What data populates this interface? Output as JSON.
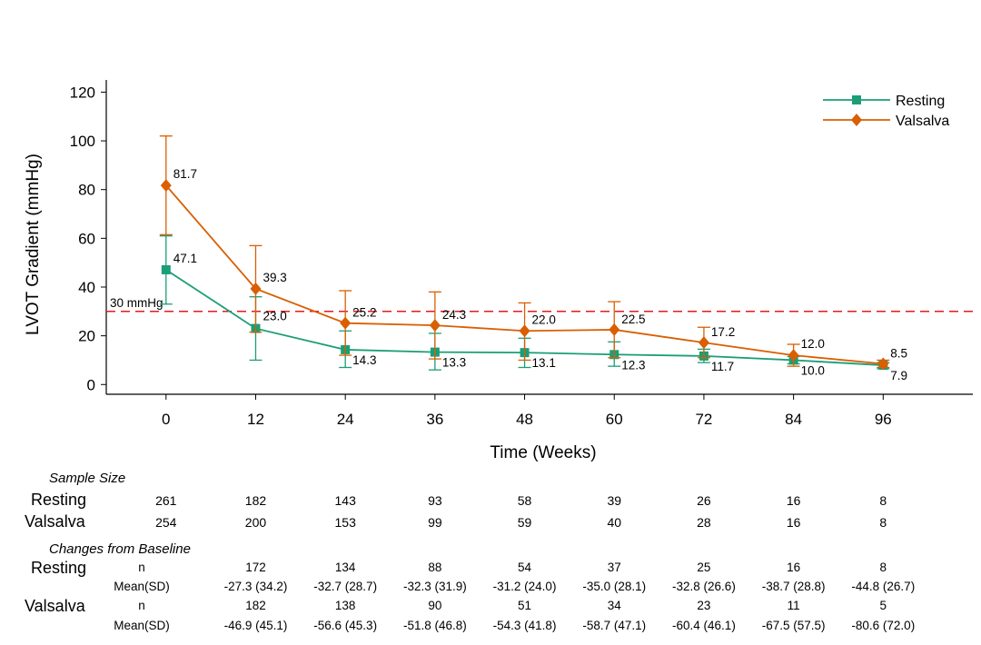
{
  "colors": {
    "resting": "#1a9e77",
    "valsalva": "#d95f02",
    "reference": "#e31a1c"
  },
  "chart_data": {
    "type": "line",
    "xlabel": "Time (Weeks)",
    "ylabel": "LVOT Gradient (mmHg)",
    "x": [
      0,
      12,
      24,
      36,
      48,
      60,
      72,
      84,
      96
    ],
    "xticks": [
      "0",
      "12",
      "24",
      "36",
      "48",
      "60",
      "72",
      "84",
      "96"
    ],
    "yticks": [
      "0",
      "20",
      "40",
      "60",
      "80",
      "100",
      "120"
    ],
    "xlim": [
      -8,
      108
    ],
    "ylim": [
      -4,
      125
    ],
    "legend_position": "top-right",
    "reference_line": {
      "y": 30,
      "label": "30 mmHg",
      "style": "dashed"
    },
    "series": [
      {
        "name": "Resting",
        "marker": "square",
        "values": [
          47.1,
          23.0,
          14.3,
          13.3,
          13.1,
          12.3,
          11.7,
          10.0,
          7.9
        ],
        "labels": [
          "47.1",
          "23.0",
          "14.3",
          "13.3",
          "13.1",
          "12.3",
          "11.7",
          "10.0",
          "7.9"
        ],
        "err_low": [
          33,
          10,
          7,
          6,
          7,
          7.5,
          9,
          8.5,
          6.5
        ],
        "err_high": [
          61,
          36,
          22,
          21,
          19,
          17.5,
          14.5,
          11.5,
          9
        ]
      },
      {
        "name": "Valsalva",
        "marker": "diamond",
        "values": [
          81.7,
          39.3,
          25.2,
          24.3,
          22.0,
          22.5,
          17.2,
          12.0,
          8.5
        ],
        "labels": [
          "81.7",
          "39.3",
          "25.2",
          "24.3",
          "22.0",
          "22.5",
          "17.2",
          "12.0",
          "8.5"
        ],
        "err_low": [
          61.5,
          21.5,
          12,
          10.5,
          10,
          11,
          11,
          7.5,
          7
        ],
        "err_high": [
          102,
          57,
          38.5,
          38,
          33.5,
          34,
          23.5,
          16.5,
          10
        ]
      }
    ]
  },
  "table": {
    "sample_size": {
      "title": "Sample Size",
      "rows": [
        {
          "label": "Resting",
          "values": [
            "261",
            "182",
            "143",
            "93",
            "58",
            "39",
            "26",
            "16",
            "8"
          ]
        },
        {
          "label": "Valsalva",
          "values": [
            "254",
            "200",
            "153",
            "99",
            "59",
            "40",
            "28",
            "16",
            "8"
          ]
        }
      ]
    },
    "changes": {
      "title": "Changes from Baseline",
      "n_label": "n",
      "mean_label": "Mean(SD)",
      "groups": [
        {
          "label": "Resting",
          "n": [
            "172",
            "134",
            "88",
            "54",
            "37",
            "25",
            "16",
            "8"
          ],
          "mean": [
            "-27.3 (34.2)",
            "-32.7 (28.7)",
            "-32.3 (31.9)",
            "-31.2 (24.0)",
            "-35.0 (28.1)",
            "-32.8 (26.6)",
            "-38.7 (28.8)",
            "-44.8 (26.7)"
          ]
        },
        {
          "label": "Valsalva",
          "n": [
            "182",
            "138",
            "90",
            "51",
            "34",
            "23",
            "11",
            "5"
          ],
          "mean": [
            "-46.9 (45.1)",
            "-56.6 (45.3)",
            "-51.8 (46.8)",
            "-54.3 (41.8)",
            "-58.7 (47.1)",
            "-60.4 (46.1)",
            "-67.5 (57.5)",
            "-80.6 (72.0)"
          ]
        }
      ]
    }
  }
}
